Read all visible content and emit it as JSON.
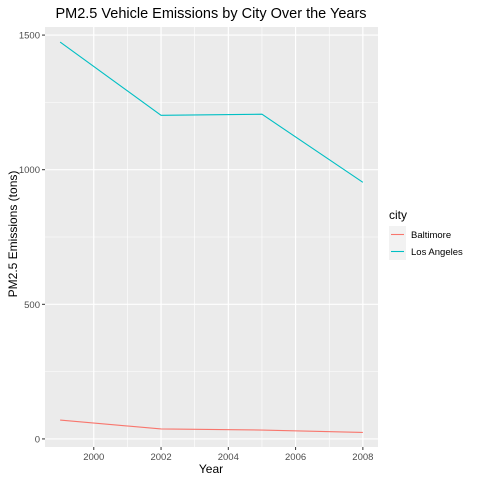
{
  "chart_data": {
    "type": "line",
    "title": "PM2.5 Vehicle Emissions by City Over the Years",
    "xlabel": "Year",
    "ylabel": "PM2.5 Emissions (tons)",
    "x": [
      1999,
      2002,
      2005,
      2008
    ],
    "xlim": [
      1998.55,
      2008.45
    ],
    "ylim": [
      -30,
      1530
    ],
    "xticks": [
      2000,
      2002,
      2004,
      2006,
      2008
    ],
    "xtick_labels": [
      "2000",
      "2002",
      "2004",
      "2006",
      "2008"
    ],
    "yticks": [
      0,
      500,
      1000,
      1500
    ],
    "ytick_labels": [
      "0",
      "500",
      "1000",
      "1500"
    ],
    "grid": true,
    "legend": {
      "title": "city",
      "position": "right"
    },
    "series": [
      {
        "name": "Baltimore",
        "color": "#F8766D",
        "values": [
          70,
          37,
          33,
          24
        ]
      },
      {
        "name": "Los Angeles",
        "color": "#00BFC4",
        "values": [
          1474,
          1202,
          1206,
          953
        ]
      }
    ],
    "panel_background": "#EBEBEB",
    "grid_color": "#FFFFFF"
  }
}
